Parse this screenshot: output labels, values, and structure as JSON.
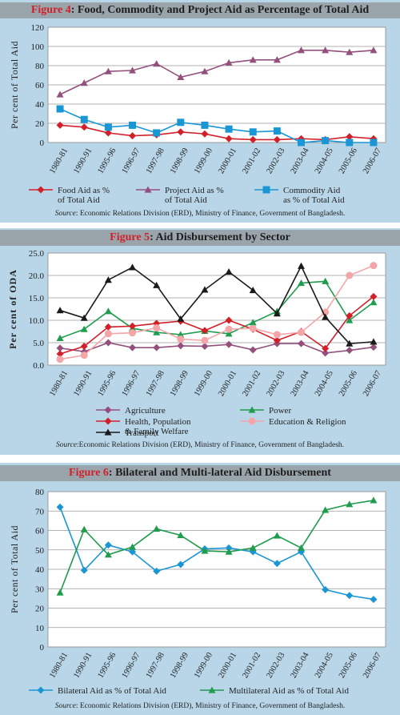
{
  "colors": {
    "panel_bg": "#b9d6e8",
    "title_bg": "#9aa4ab",
    "plot_bg": "#ffffff",
    "fig_red": "#d2202a",
    "food": "#d2202a",
    "project": "#94507c",
    "commodity": "#1a96d4",
    "agriculture": "#94507c",
    "power": "#1f9c4e",
    "health": "#d2202a",
    "education": "#f3a5a8",
    "transport": "#1a1a1a",
    "bilateral": "#1a96d4",
    "multilateral": "#1f9c4e"
  },
  "fig4": {
    "fig_label": "Figure 4",
    "title_rest": ": Food, Commodity and Project Aid as Percentage of Total Aid",
    "ylabel": "Per cent of Total Aid",
    "source_label": "Source",
    "source_text": ": Economic Relations Division (ERD), Ministry of Finance, Government of Bangladesh."
  },
  "fig5": {
    "fig_label": "Figure 5",
    "title_rest": ": Aid Disbursement by Sector",
    "ylabel": "Per cent of ODA",
    "source_label": "Source",
    "source_text": ":Economic Relations Division (ERD), Ministry of Finance, Government of Bangladesh."
  },
  "fig6": {
    "fig_label": "Figure 6",
    "title_rest": ": Bilateral and Multi-lateral Aid Disbursement",
    "ylabel": "Per cent of Total Aid",
    "source_label": "Source",
    "source_text": ": Economic Relations Division (ERD), Ministry of Finance, Government of Bangladesh."
  },
  "chart_data": [
    {
      "type": "line",
      "title": "Figure 4: Food, Commodity and Project Aid as Percentage of Total Aid",
      "ylabel": "Per cent of Total Aid",
      "ylim": [
        0,
        120
      ],
      "yticks": [
        "0",
        "20",
        "40",
        "60",
        "80",
        "100",
        "120"
      ],
      "grid": true,
      "legend": "bottom",
      "categories": [
        "1980-81",
        "1990-91",
        "1995-96",
        "1996-97",
        "1997-98",
        "1998-99",
        "1999-00",
        "2000-01",
        "2001-02",
        "2002-03",
        "2003-04",
        "2004-05",
        "2005-06",
        "2006-07"
      ],
      "series": [
        {
          "name": "Food Aid as % of Total Aid",
          "legend_lines": [
            "Food Aid as %",
            "of Total Aid"
          ],
          "marker": "diamond",
          "color": "#d2202a",
          "values": [
            18,
            16,
            10,
            7,
            8,
            11,
            9,
            4,
            3,
            3,
            4,
            3,
            6,
            4
          ]
        },
        {
          "name": "Project Aid as % of Total Aid",
          "legend_lines": [
            "Project Aid as %",
            "of Total Aid"
          ],
          "marker": "triangle",
          "color": "#94507c",
          "values": [
            50,
            62,
            74,
            75,
            82,
            68,
            74,
            83,
            86,
            86,
            96,
            96,
            94,
            96
          ]
        },
        {
          "name": "Commodity Aid as % of Total Aid",
          "legend_lines": [
            "Commodity Aid",
            "as % of Total Aid"
          ],
          "marker": "square",
          "color": "#1a96d4",
          "values": [
            35,
            24,
            16,
            18,
            10,
            21,
            18,
            14,
            11,
            12,
            0,
            2,
            0,
            0
          ]
        }
      ]
    },
    {
      "type": "line",
      "title": "Figure 5: Aid Disbursement by Sector",
      "ylabel": "Per cent of ODA",
      "ylim": [
        0,
        25
      ],
      "yticks": [
        "0.0",
        "5.0",
        "10.0",
        "15.0",
        "20.0",
        "25.0"
      ],
      "grid": true,
      "legend": "bottom",
      "categories": [
        "1980-81",
        "1990-91",
        "1995-96",
        "1996-97",
        "1997-98",
        "1998-99",
        "1999-00",
        "2000-01",
        "2001-02",
        "2002-03",
        "2003-04",
        "2004-05",
        "2005-06",
        "2006-07"
      ],
      "series": [
        {
          "name": "Agriculture",
          "legend_lines": [
            "Agriculture"
          ],
          "marker": "diamond",
          "color": "#94507c",
          "values": [
            3.8,
            3.0,
            5.0,
            3.9,
            3.9,
            4.3,
            4.2,
            4.6,
            3.4,
            4.8,
            4.8,
            2.7,
            3.3,
            4.0
          ]
        },
        {
          "name": "Power",
          "legend_lines": [
            "Power"
          ],
          "marker": "triangle",
          "color": "#1f9c4e",
          "values": [
            6.0,
            8.0,
            12.0,
            8.2,
            7.3,
            6.8,
            7.6,
            7.0,
            9.5,
            12.0,
            18.3,
            18.7,
            10.0,
            14.0
          ]
        },
        {
          "name": "Health, Population & Family Welfare",
          "legend_lines": [
            "Health, Population",
            "& Family Welfare"
          ],
          "marker": "diamond",
          "color": "#d2202a",
          "values": [
            2.5,
            4.2,
            8.5,
            8.7,
            9.3,
            9.8,
            7.7,
            10.0,
            8.0,
            5.5,
            7.5,
            3.7,
            11.0,
            15.3
          ]
        },
        {
          "name": "Education & Religion",
          "legend_lines": [
            "Education & Religion"
          ],
          "marker": "circle",
          "color": "#f3a5a8",
          "values": [
            1.3,
            2.2,
            7.0,
            7.2,
            8.3,
            5.8,
            5.5,
            8.0,
            8.2,
            6.8,
            7.3,
            11.8,
            20.0,
            22.2
          ]
        },
        {
          "name": "Transport",
          "legend_lines": [
            "Transport"
          ],
          "marker": "triangle",
          "color": "#1a1a1a",
          "values": [
            12.2,
            10.5,
            19.0,
            21.8,
            17.8,
            10.3,
            16.8,
            20.8,
            16.7,
            11.5,
            22.1,
            10.7,
            4.8,
            5.2
          ]
        }
      ]
    },
    {
      "type": "line",
      "title": "Figure 6: Bilateral and Multi-lateral Aid Disbursement",
      "ylabel": "Per cent of Total Aid",
      "ylim": [
        0,
        80
      ],
      "yticks": [
        "0",
        "10",
        "20",
        "30",
        "40",
        "50",
        "60",
        "70",
        "80"
      ],
      "grid": true,
      "legend": "bottom",
      "categories": [
        "1980-81",
        "1990-91",
        "1995-96",
        "1996-97",
        "1997-98",
        "1998-99",
        "1999-00",
        "2000-01",
        "2001-02",
        "2002-03",
        "2003-04",
        "2004-05",
        "2005-06",
        "2006-07"
      ],
      "series": [
        {
          "name": "Bilateral Aid as % of Total Aid",
          "legend_lines": [
            "Bilateral Aid as % of Total Aid"
          ],
          "marker": "diamond",
          "color": "#1a96d4",
          "values": [
            72,
            39.5,
            52.5,
            49,
            39,
            42.5,
            50.5,
            51,
            49,
            43,
            49,
            29.5,
            26.5,
            24.5
          ]
        },
        {
          "name": "Multilateral Aid as % of Total Aid",
          "legend_lines": [
            "Multilateral Aid as % of Total Aid"
          ],
          "marker": "triangle",
          "color": "#1f9c4e",
          "values": [
            28,
            60.5,
            47.5,
            51.5,
            60.8,
            57.5,
            49.5,
            49,
            51,
            57.3,
            51,
            70.5,
            73.5,
            75.5
          ]
        }
      ]
    }
  ]
}
